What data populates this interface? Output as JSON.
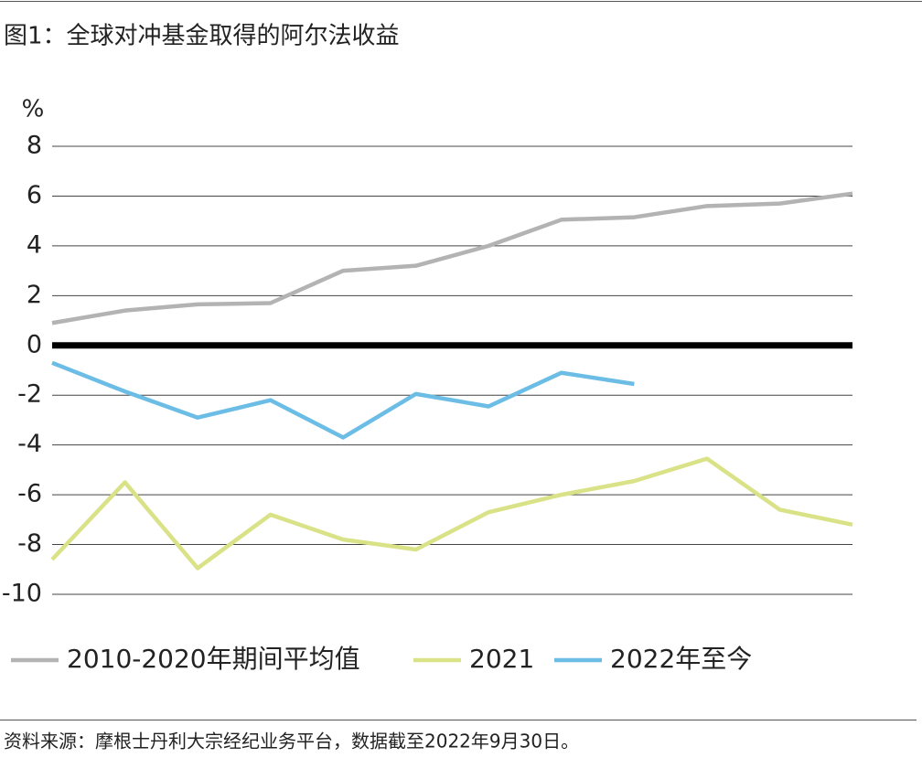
{
  "chart_data": {
    "type": "line",
    "title": "图1：全球对冲基金取得的阿尔法收益",
    "y_label": "%",
    "source": "资料来源：摩根士丹利大宗经纪业务平台，数据截至2022年9月30日。",
    "categories": [
      null,
      null,
      null,
      null,
      null,
      null,
      null,
      null,
      null,
      null,
      null,
      null
    ],
    "series": [
      {
        "name": "2010-2020年期间平均值",
        "color": "#b3b3b3",
        "values": [
          0.9,
          1.4,
          1.65,
          1.7,
          3.0,
          3.2,
          4.0,
          5.05,
          5.15,
          5.6,
          5.7,
          6.1
        ]
      },
      {
        "name": "2021",
        "color": "#d9e286",
        "values": [
          -8.6,
          -5.5,
          -8.95,
          -6.8,
          -7.8,
          -8.2,
          -6.7,
          -6.0,
          -5.45,
          -4.55,
          -6.6,
          -7.2
        ]
      },
      {
        "name": "2022年至今",
        "color": "#6cbde6",
        "values": [
          -0.7,
          -1.85,
          -2.9,
          -2.2,
          -3.7,
          -1.95,
          -2.45,
          -1.1,
          -1.55,
          null,
          null,
          null
        ]
      }
    ],
    "ylim": [
      -10,
      8
    ],
    "yticks": [
      -10,
      -8,
      -6,
      -4,
      -2,
      0,
      2,
      4,
      6,
      8
    ],
    "grid": true,
    "legend": "bottom"
  }
}
